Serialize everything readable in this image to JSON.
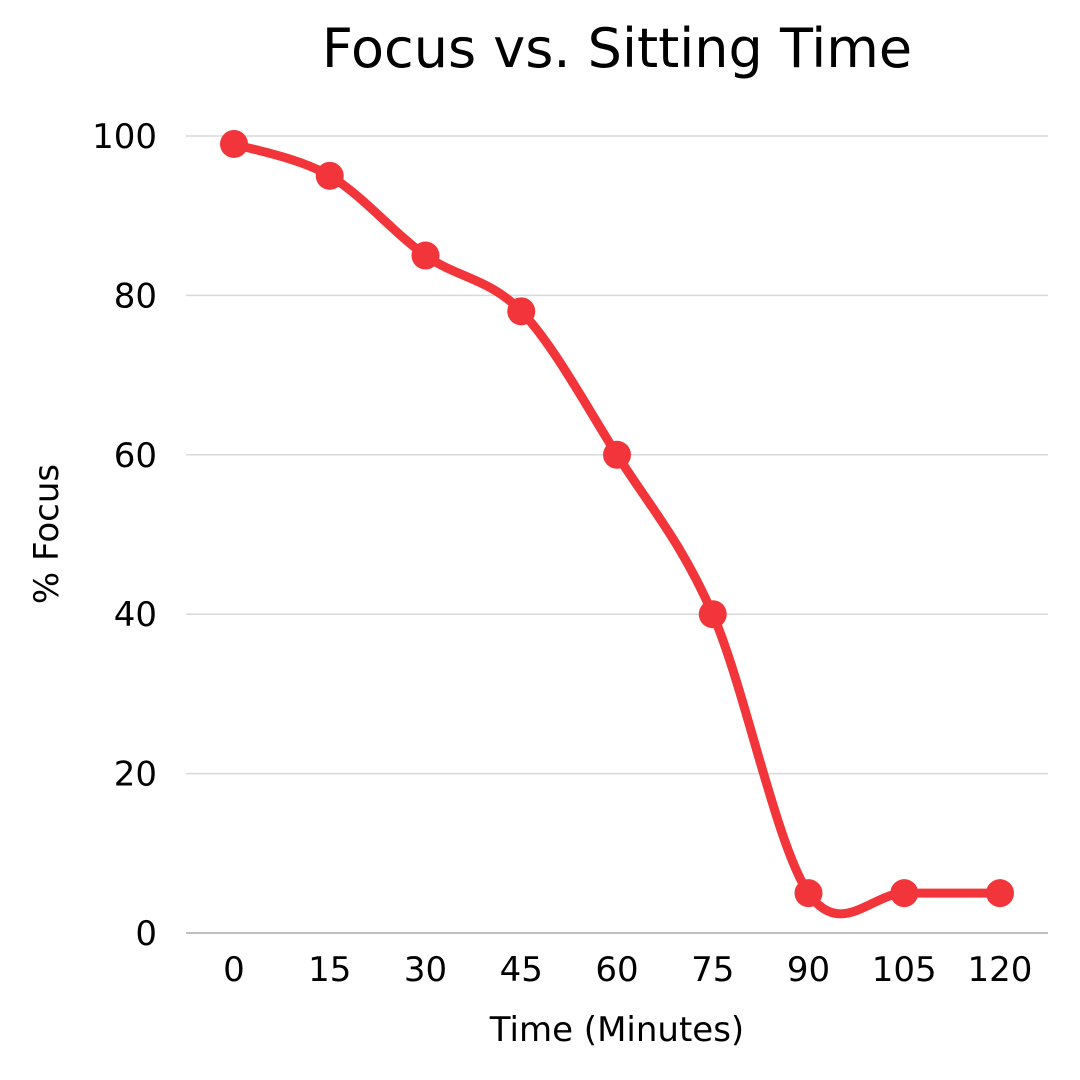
{
  "chart_data": {
    "type": "line",
    "title": "Focus vs. Sitting Time",
    "xlabel": "Time (Minutes)",
    "ylabel": "% Focus",
    "categories": [
      "0",
      "15",
      "30",
      "45",
      "60",
      "75",
      "90",
      "105",
      "120"
    ],
    "series": [
      {
        "values": [
          99,
          95,
          85,
          78,
          60,
          40,
          5,
          5,
          5
        ],
        "color": "#f2353a"
      }
    ],
    "ylim": [
      0,
      100
    ],
    "yticks": [
      0,
      20,
      40,
      60,
      80,
      100
    ],
    "grid": true,
    "smooth": true,
    "markers": true
  }
}
